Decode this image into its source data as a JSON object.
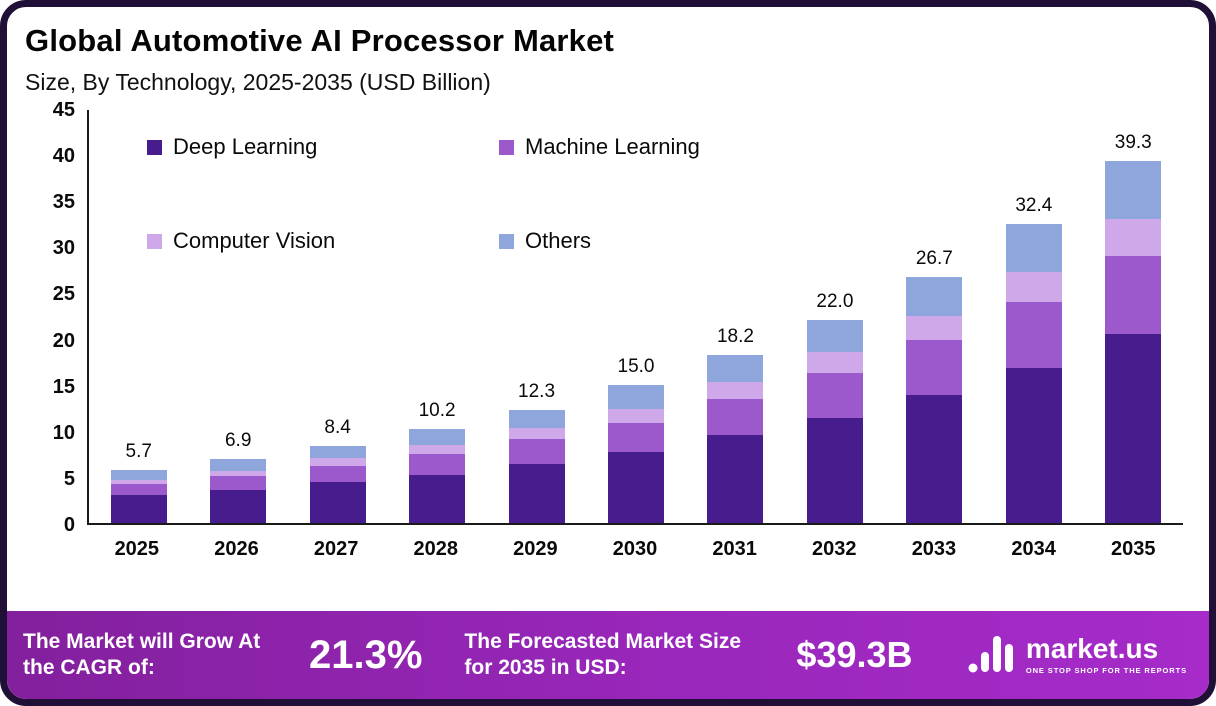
{
  "header": {
    "title": "Global Automotive AI Processor Market",
    "subtitle": "Size, By Technology, 2025-2035 (USD Billion)"
  },
  "chart_data": {
    "type": "bar",
    "stacked": true,
    "title": "Global Automotive AI Processor Market",
    "subtitle": "Size, By Technology, 2025-2035 (USD Billion)",
    "unit": "USD Billion",
    "categories": [
      "2025",
      "2026",
      "2027",
      "2028",
      "2029",
      "2030",
      "2031",
      "2032",
      "2033",
      "2034",
      "2035"
    ],
    "series": [
      {
        "name": "Deep Learning",
        "color": "#471c8c",
        "values": [
          3.0,
          3.6,
          4.4,
          5.2,
          6.4,
          7.7,
          9.5,
          11.4,
          13.9,
          16.8,
          20.5
        ]
      },
      {
        "name": "Machine Learning",
        "color": "#9c59cb",
        "values": [
          1.2,
          1.5,
          1.8,
          2.3,
          2.7,
          3.2,
          4.0,
          4.9,
          5.9,
          7.2,
          8.5
        ]
      },
      {
        "name": "Computer Vision",
        "color": "#cfa8ea",
        "values": [
          0.5,
          0.6,
          0.8,
          1.0,
          1.2,
          1.5,
          1.8,
          2.2,
          2.6,
          3.2,
          4.0
        ]
      },
      {
        "name": "Others",
        "color": "#8ea6db",
        "values": [
          1.0,
          1.2,
          1.4,
          1.7,
          2.0,
          2.6,
          2.9,
          3.5,
          4.3,
          5.2,
          6.3
        ]
      }
    ],
    "totals": [
      "5.7",
      "6.9",
      "8.4",
      "10.2",
      "12.3",
      "15.0",
      "18.2",
      "22.0",
      "26.7",
      "32.4",
      "39.3"
    ],
    "ylim": [
      0,
      45
    ],
    "yticks": [
      0,
      5,
      10,
      15,
      20,
      25,
      30,
      35,
      40,
      45
    ],
    "grid": false,
    "legend_position": "top-left-inside"
  },
  "footer": {
    "cagr_label": "The Market will Grow At the CAGR of:",
    "cagr_value": "21.3%",
    "forecast_label": "The Forecasted Market Size for 2035 in USD:",
    "forecast_value": "$39.3B",
    "brand_name": "market.us",
    "brand_tagline": "ONE STOP SHOP FOR THE REPORTS"
  },
  "colors": {
    "border": "#201038",
    "banner_gradient_start": "#83209d",
    "banner_gradient_end": "#a62bc9"
  }
}
